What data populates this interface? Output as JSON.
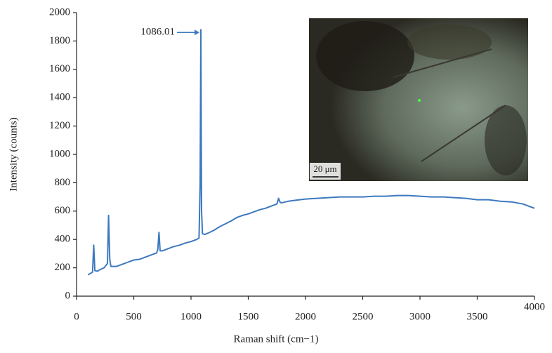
{
  "chart_data": {
    "type": "line",
    "xlabel": "Raman shift (cm−1)",
    "ylabel": "Intensity (counts)",
    "annotation": "1086.01",
    "inset_scale_label": "20 μm",
    "xlim": [
      0,
      4000
    ],
    "ylim": [
      0,
      2000
    ],
    "xticks": [
      0,
      500,
      1000,
      1500,
      2000,
      2500,
      3000,
      3500,
      4000
    ],
    "yticks": [
      0,
      200,
      400,
      600,
      800,
      1000,
      1200,
      1400,
      1600,
      1800,
      2000
    ],
    "x": [
      100,
      120,
      140,
      150,
      160,
      180,
      200,
      240,
      270,
      280,
      290,
      300,
      350,
      400,
      450,
      500,
      550,
      600,
      650,
      700,
      710,
      720,
      730,
      750,
      800,
      850,
      900,
      950,
      1000,
      1050,
      1070,
      1080,
      1086,
      1092,
      1100,
      1120,
      1150,
      1200,
      1250,
      1300,
      1350,
      1400,
      1450,
      1500,
      1550,
      1600,
      1650,
      1700,
      1750,
      1765,
      1780,
      1800,
      1850,
      1900,
      1950,
      2000,
      2100,
      2200,
      2300,
      2400,
      2500,
      2600,
      2700,
      2800,
      2900,
      3000,
      3100,
      3200,
      3300,
      3400,
      3500,
      3600,
      3700,
      3800,
      3900,
      4000
    ],
    "series": [
      {
        "color": "#3d79bf",
        "values": [
          150,
          160,
          170,
          360,
          180,
          175,
          185,
          200,
          230,
          570,
          260,
          210,
          210,
          225,
          240,
          255,
          260,
          275,
          290,
          305,
          330,
          450,
          320,
          320,
          335,
          350,
          360,
          375,
          385,
          400,
          410,
          800,
          1880,
          600,
          440,
          435,
          445,
          465,
          490,
          510,
          530,
          555,
          570,
          580,
          595,
          610,
          620,
          635,
          650,
          690,
          660,
          660,
          670,
          675,
          680,
          685,
          690,
          695,
          700,
          700,
          700,
          705,
          705,
          710,
          710,
          705,
          700,
          700,
          695,
          690,
          680,
          680,
          670,
          665,
          650,
          620
        ]
      }
    ]
  }
}
